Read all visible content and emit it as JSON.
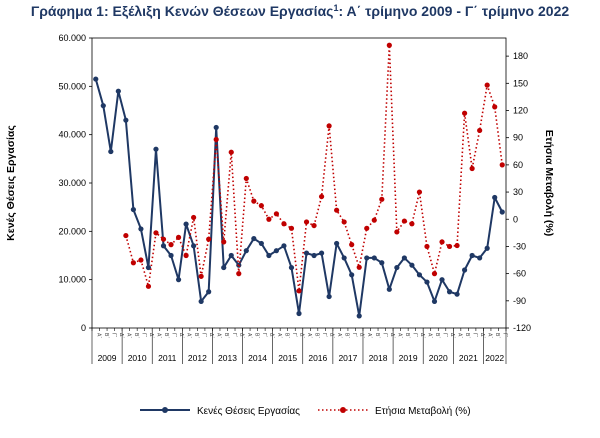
{
  "chart_data": {
    "type": "line",
    "title": "Γράφημα 1: Εξέλιξη Κενών Θέσεων Εργασίας",
    "title_sup": "1",
    "title_suffix": ": Α΄ τρίμηνο 2009 - Γ΄ τρίμηνο 2022",
    "ylabel": "Κενές Θέσεις Εργασίας",
    "y2label": "Ετήσια Μεταβολή (%)",
    "ylim": [
      0,
      60000
    ],
    "y_ticks": [
      "0",
      "10.000",
      "20.000",
      "30.000",
      "40.000",
      "50.000",
      "60.000"
    ],
    "y2lim": [
      -120,
      200
    ],
    "y2_ticks": [
      "-120",
      "-90",
      "-60",
      "-30",
      "0",
      "30",
      "60",
      "90",
      "120",
      "150",
      "180"
    ],
    "years": [
      "2009",
      "2010",
      "2011",
      "2012",
      "2013",
      "2014",
      "2015",
      "2016",
      "2017",
      "2018",
      "2019",
      "2020",
      "2021",
      "2022"
    ],
    "quarter_labels": [
      "Α΄",
      "Β΄",
      "Γ΄",
      "Δ΄"
    ],
    "legend_position": "bottom",
    "series": [
      {
        "name": "Κενές Θέσεις Εργασίας",
        "axis": "left",
        "color": "#1f3864",
        "style": "solid",
        "values": [
          51500,
          46000,
          36500,
          49000,
          43000,
          24500,
          20500,
          12500,
          37000,
          17000,
          15000,
          10000,
          21500,
          17000,
          5500,
          7500,
          41500,
          12500,
          15000,
          13000,
          16000,
          18500,
          17500,
          15000,
          16000,
          17000,
          12500,
          3000,
          15500,
          15000,
          15500,
          6500,
          17500,
          14500,
          11000,
          2500,
          14500,
          14500,
          13500,
          8000,
          12500,
          14500,
          13000,
          11000,
          9500,
          5500,
          10000,
          7500,
          7000,
          12000,
          15000,
          14500,
          16500,
          27000,
          24000
        ]
      },
      {
        "name": "Ετήσια Μεταβολή (%)",
        "axis": "right",
        "color": "#c00000",
        "style": "dotted",
        "values": [
          null,
          null,
          null,
          null,
          -18,
          -48,
          -45,
          -74,
          -15,
          -22,
          -28,
          -20,
          -40,
          2,
          -63,
          -22,
          88,
          -25,
          74,
          -60,
          45,
          20,
          15,
          0,
          6,
          -5,
          -10,
          -79,
          -3,
          -7,
          25,
          103,
          10,
          -3,
          -28,
          -53,
          -10,
          -1,
          22,
          192,
          -14,
          -2,
          -5,
          30,
          -30,
          -60,
          -25,
          -30,
          -29,
          117,
          56,
          98,
          148,
          124,
          60
        ]
      }
    ]
  }
}
